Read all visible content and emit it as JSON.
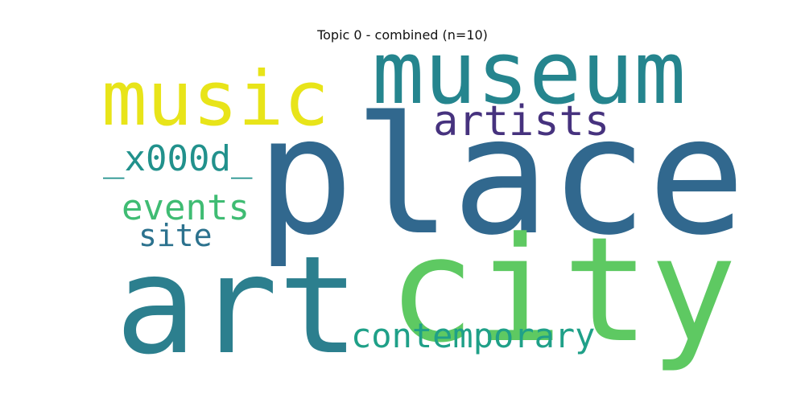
{
  "title": "Topic 0 - combined (n=10)",
  "words": [
    {
      "text": "place",
      "color": "#31688e"
    },
    {
      "text": "city",
      "color": "#5ec962"
    },
    {
      "text": "art",
      "color": "#2c7f8e"
    },
    {
      "text": "museum",
      "color": "#25858e"
    },
    {
      "text": "music",
      "color": "#e8e419"
    },
    {
      "text": "artists",
      "color": "#46327e"
    },
    {
      "text": "_x000d_",
      "color": "#21918c"
    },
    {
      "text": "events",
      "color": "#3fbc73"
    },
    {
      "text": "site",
      "color": "#2c728e"
    },
    {
      "text": "contemporary",
      "color": "#1fa088"
    }
  ]
}
